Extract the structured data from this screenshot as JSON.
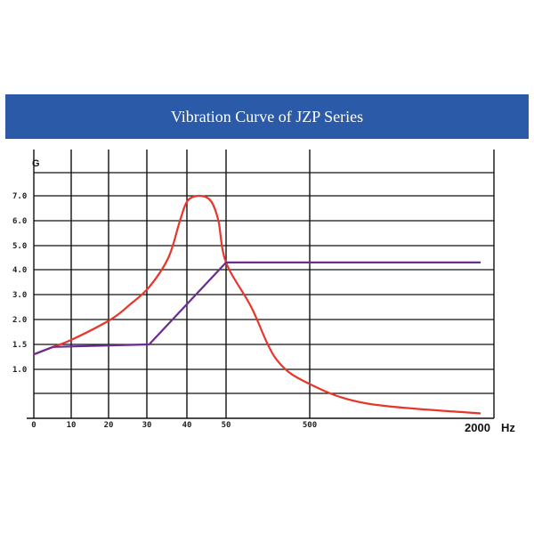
{
  "title": "Vibration Curve of JZP Series",
  "chart_data": {
    "type": "line",
    "title": "Vibration Curve of JZP Series",
    "ylabel": "G",
    "xunit": "Hz",
    "x_ticks": [
      "0",
      "10",
      "20",
      "30",
      "40",
      "50",
      "500"
    ],
    "x_end_label": "2000",
    "y_ticks": [
      "1.0",
      "1.5",
      "2.0",
      "3.0",
      "4.0",
      "5.0",
      "6.0",
      "7.0"
    ],
    "grid": true,
    "colors": {
      "red_curve": "#e8362b",
      "purple_curve": "#6a2c91",
      "title_bar": "#2b5aa8"
    },
    "series": [
      {
        "points": [
          {
            "x": "0",
            "y": 1.3
          },
          {
            "x": "5",
            "y": 1.45
          },
          {
            "x": "10",
            "y": 1.6
          },
          {
            "x": "20",
            "y": 2.0
          },
          {
            "x": "25",
            "y": 2.6
          },
          {
            "x": "30",
            "y": 3.3
          },
          {
            "x": "35",
            "y": 4.5
          },
          {
            "x": "38",
            "y": 6.0
          },
          {
            "x": "40",
            "y": 6.8
          },
          {
            "x": "43",
            "y": 7.0
          },
          {
            "x": "46",
            "y": 6.8
          },
          {
            "x": "48",
            "y": 6.0
          },
          {
            "x": "50",
            "y": 4.3
          },
          {
            "x": "100",
            "y": 2.5
          },
          {
            "x": "200",
            "y": 1.2
          },
          {
            "x": "500",
            "y": 0.7
          },
          {
            "x": "800",
            "y": 0.3
          },
          {
            "x": "2000",
            "y": 0.1
          }
        ]
      },
      {
        "points": [
          {
            "x": "0",
            "y": 1.3
          },
          {
            "x": "5",
            "y": 1.45
          },
          {
            "x": "30",
            "y": 1.5
          },
          {
            "x": "50",
            "y": 4.3
          },
          {
            "x": "2000",
            "y": 4.3
          }
        ]
      }
    ]
  }
}
